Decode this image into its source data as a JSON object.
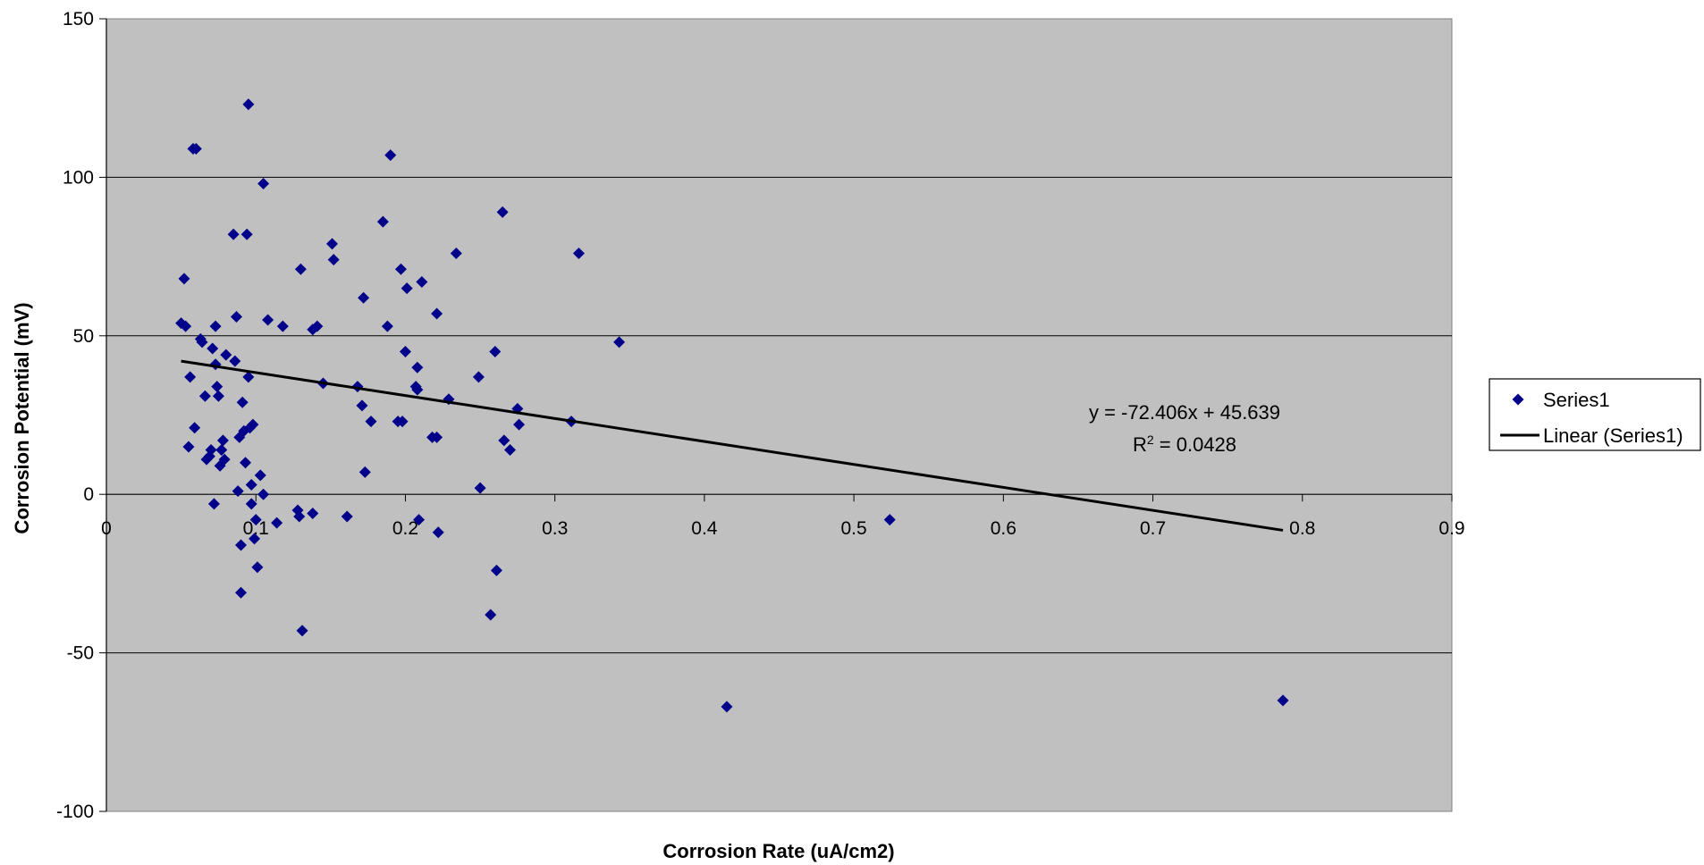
{
  "chart_data": {
    "type": "scatter",
    "xlabel": "Corrosion Rate (uA/cm2)",
    "ylabel": "Corrosion Potential (mV)",
    "xlim": [
      0,
      0.9
    ],
    "ylim": [
      -100,
      150
    ],
    "x_ticks": [
      "0",
      "0.1",
      "0.2",
      "0.3",
      "0.4",
      "0.5",
      "0.6",
      "0.7",
      "0.8",
      "0.9"
    ],
    "y_ticks": [
      "150",
      "100",
      "50",
      "0",
      "-50",
      "-100"
    ],
    "grid": "horizontal",
    "plot_background": "#c0c0c0",
    "marker_color": "#00008b",
    "legend_position": "right",
    "series": [
      {
        "name": "Series1",
        "marker": "diamond",
        "points": [
          [
            0.05,
            54
          ],
          [
            0.052,
            68
          ],
          [
            0.053,
            53
          ],
          [
            0.055,
            15
          ],
          [
            0.056,
            37
          ],
          [
            0.058,
            109
          ],
          [
            0.059,
            21
          ],
          [
            0.06,
            109
          ],
          [
            0.063,
            49
          ],
          [
            0.064,
            48
          ],
          [
            0.066,
            31
          ],
          [
            0.067,
            11
          ],
          [
            0.069,
            12
          ],
          [
            0.07,
            14
          ],
          [
            0.071,
            46
          ],
          [
            0.072,
            -3
          ],
          [
            0.073,
            53
          ],
          [
            0.073,
            41
          ],
          [
            0.074,
            34
          ],
          [
            0.075,
            31
          ],
          [
            0.076,
            9
          ],
          [
            0.077,
            14
          ],
          [
            0.078,
            17
          ],
          [
            0.079,
            11
          ],
          [
            0.08,
            44
          ],
          [
            0.085,
            82
          ],
          [
            0.086,
            42
          ],
          [
            0.087,
            56
          ],
          [
            0.088,
            1
          ],
          [
            0.089,
            18
          ],
          [
            0.09,
            -16
          ],
          [
            0.09,
            -31
          ],
          [
            0.091,
            29
          ],
          [
            0.092,
            20
          ],
          [
            0.093,
            10
          ],
          [
            0.094,
            82
          ],
          [
            0.095,
            123
          ],
          [
            0.095,
            37
          ],
          [
            0.096,
            21
          ],
          [
            0.097,
            3
          ],
          [
            0.097,
            -3
          ],
          [
            0.098,
            22
          ],
          [
            0.099,
            -14
          ],
          [
            0.1,
            -8
          ],
          [
            0.101,
            -23
          ],
          [
            0.103,
            6
          ],
          [
            0.105,
            0
          ],
          [
            0.105,
            98
          ],
          [
            0.108,
            55
          ],
          [
            0.114,
            -9
          ],
          [
            0.118,
            53
          ],
          [
            0.128,
            -5
          ],
          [
            0.129,
            -7
          ],
          [
            0.13,
            71
          ],
          [
            0.131,
            -43
          ],
          [
            0.138,
            -6
          ],
          [
            0.138,
            52
          ],
          [
            0.141,
            53
          ],
          [
            0.145,
            35
          ],
          [
            0.151,
            79
          ],
          [
            0.152,
            74
          ],
          [
            0.161,
            -7
          ],
          [
            0.168,
            34
          ],
          [
            0.171,
            28
          ],
          [
            0.172,
            62
          ],
          [
            0.173,
            7
          ],
          [
            0.177,
            23
          ],
          [
            0.185,
            86
          ],
          [
            0.188,
            53
          ],
          [
            0.19,
            107
          ],
          [
            0.195,
            23
          ],
          [
            0.197,
            71
          ],
          [
            0.198,
            23
          ],
          [
            0.2,
            45
          ],
          [
            0.201,
            65
          ],
          [
            0.207,
            34
          ],
          [
            0.208,
            33
          ],
          [
            0.208,
            40
          ],
          [
            0.209,
            -8
          ],
          [
            0.211,
            67
          ],
          [
            0.218,
            18
          ],
          [
            0.221,
            18
          ],
          [
            0.221,
            57
          ],
          [
            0.222,
            -12
          ],
          [
            0.229,
            30
          ],
          [
            0.234,
            76
          ],
          [
            0.249,
            37
          ],
          [
            0.25,
            2
          ],
          [
            0.257,
            -38
          ],
          [
            0.26,
            45
          ],
          [
            0.261,
            -24
          ],
          [
            0.265,
            89
          ],
          [
            0.266,
            17
          ],
          [
            0.27,
            14
          ],
          [
            0.275,
            27
          ],
          [
            0.276,
            22
          ],
          [
            0.311,
            23
          ],
          [
            0.316,
            76
          ],
          [
            0.343,
            48
          ],
          [
            0.415,
            -67
          ],
          [
            0.524,
            -8
          ],
          [
            0.787,
            -65
          ]
        ]
      },
      {
        "name": "Linear (Series1)",
        "type": "line",
        "slope": -72.406,
        "intercept": 45.639,
        "x_range": [
          0.05,
          0.787
        ]
      }
    ],
    "annotations": {
      "equation": "y = -72.406x + 45.639",
      "r2_prefix": "R",
      "r2_sup": "2",
      "r2_suffix": " = 0.0428"
    }
  }
}
